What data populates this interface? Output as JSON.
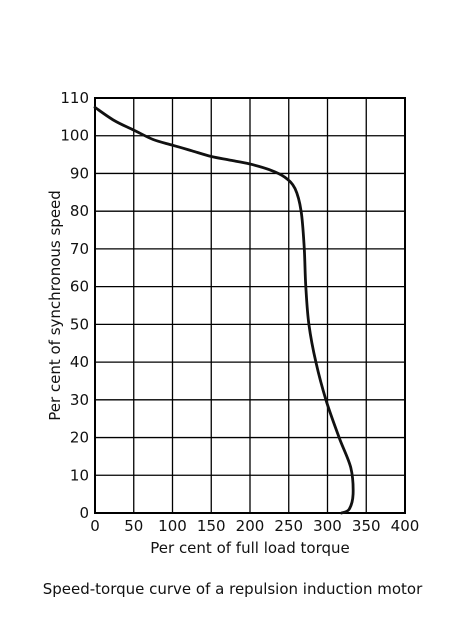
{
  "chart_data": {
    "type": "line",
    "title": "Speed-torque curve of a repulsion induction motor",
    "xlabel": "Per cent of full load torque",
    "ylabel": "Per cent of synchronous speed",
    "xlim": [
      0,
      400
    ],
    "ylim": [
      0,
      110
    ],
    "x_ticks": [
      0,
      50,
      100,
      150,
      200,
      250,
      300,
      350,
      400
    ],
    "y_ticks": [
      0,
      10,
      20,
      30,
      40,
      50,
      60,
      70,
      80,
      90,
      100,
      110
    ],
    "grid": true,
    "series": [
      {
        "points": [
          [
            0,
            107.5
          ],
          [
            25,
            104
          ],
          [
            50,
            101.5
          ],
          [
            75,
            99
          ],
          [
            100,
            97.5
          ],
          [
            125,
            96
          ],
          [
            150,
            94.5
          ],
          [
            175,
            93.5
          ],
          [
            200,
            92.5
          ],
          [
            225,
            91
          ],
          [
            245,
            89
          ],
          [
            258,
            86
          ],
          [
            266,
            80
          ],
          [
            270,
            70
          ],
          [
            272,
            60
          ],
          [
            276,
            50
          ],
          [
            285,
            40
          ],
          [
            298,
            30
          ],
          [
            315,
            20
          ],
          [
            330,
            12
          ],
          [
            333,
            5
          ],
          [
            328,
            1
          ],
          [
            318,
            0
          ]
        ]
      }
    ]
  }
}
